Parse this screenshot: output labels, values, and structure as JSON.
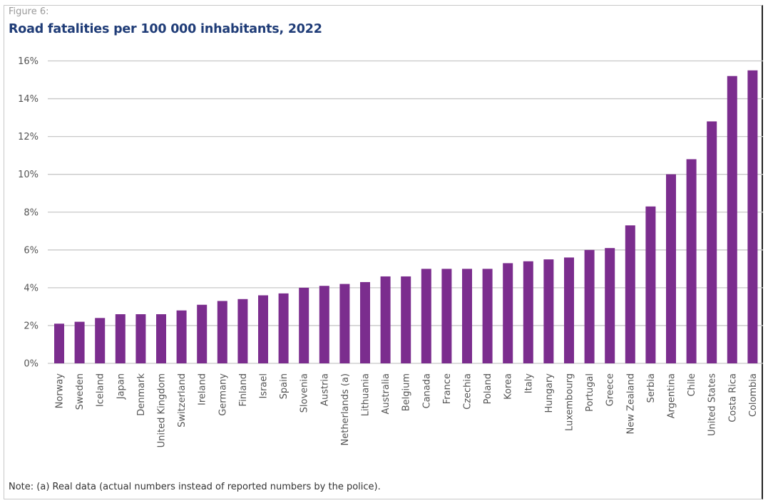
{
  "figure": {
    "label": "Figure 6:",
    "title": "Road fatalities per 100 000 inhabitants, 2022",
    "note": "Note: (a) Real data (actual numbers instead of reported numbers by the police)."
  },
  "colors": {
    "bar": "#7b2d8e",
    "title": "#1f3c77",
    "grid": "#c8c8c8"
  },
  "chart_data": {
    "type": "bar",
    "title": "Road fatalities per 100 000 inhabitants, 2022",
    "xlabel": "",
    "ylabel": "",
    "ylim": [
      0,
      16
    ],
    "yticks": [
      0,
      2,
      4,
      6,
      8,
      10,
      12,
      14,
      16
    ],
    "ytick_labels": [
      "0%",
      "2%",
      "4%",
      "6%",
      "8%",
      "10%",
      "12%",
      "14%",
      "16%"
    ],
    "grid": true,
    "legend": "none",
    "categories": [
      "Norway",
      "Sweden",
      "Iceland",
      "Japan",
      "Denmark",
      "United Kingdom",
      "Switzerland",
      "Ireland",
      "Germany",
      "Finland",
      "Israel",
      "Spain",
      "Slovenia",
      "Austria",
      "Netherlands (a)",
      "Lithuania",
      "Australia",
      "Belgium",
      "Canada",
      "France",
      "Czechia",
      "Poland",
      "Korea",
      "Italy",
      "Hungary",
      "Luxembourg",
      "Portugal",
      "Greece",
      "New Zealand",
      "Serbia",
      "Argentina",
      "Chile",
      "United States",
      "Costa Rica",
      "Colombia"
    ],
    "values": [
      2.1,
      2.2,
      2.4,
      2.6,
      2.6,
      2.6,
      2.8,
      3.1,
      3.3,
      3.4,
      3.6,
      3.7,
      4.0,
      4.1,
      4.2,
      4.3,
      4.6,
      4.6,
      5.0,
      5.0,
      5.0,
      5.0,
      5.3,
      5.4,
      5.5,
      5.6,
      6.0,
      6.1,
      7.3,
      8.3,
      10.0,
      10.8,
      12.8,
      15.2,
      15.5
    ],
    "annotations": [
      "Note: (a) Real data (actual numbers instead of reported numbers by the police)."
    ]
  }
}
